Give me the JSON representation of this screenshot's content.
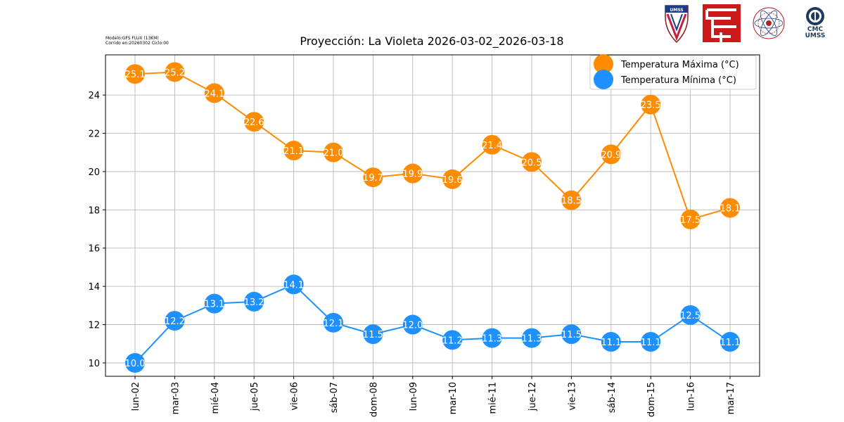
{
  "meta": {
    "model": "Modelo:GFS FLUX (13KM)",
    "run": "Corrido en:20260302 Ciclo:00"
  },
  "logos": [
    {
      "name": "umss-shield-logo",
      "text": "UMSS"
    },
    {
      "name": "fcyt-red-logo",
      "text": ""
    },
    {
      "name": "university-seal-logo",
      "text": ""
    },
    {
      "name": "cmc-umss-logo",
      "text": "CMC UMSS"
    }
  ],
  "chart_data": {
    "type": "line",
    "title": "Proyección: La Violeta 2026-03-02_2026-03-18",
    "xlabel": "",
    "ylabel": "",
    "categories": [
      "lun-02",
      "mar-03",
      "mié-04",
      "jue-05",
      "vie-06",
      "sáb-07",
      "dom-08",
      "lun-09",
      "mar-10",
      "mié-11",
      "jue-12",
      "vie-13",
      "sáb-14",
      "dom-15",
      "lun-16",
      "mar-17"
    ],
    "series": [
      {
        "name": "Temperatura Máxima  (°C)",
        "color": "#ff8c00",
        "values": [
          25.1,
          25.2,
          24.1,
          22.6,
          21.1,
          21.0,
          19.7,
          19.9,
          19.6,
          21.4,
          20.5,
          18.5,
          20.9,
          23.5,
          17.5,
          18.1
        ]
      },
      {
        "name": "Temperatura Mínima  (°C)",
        "color": "#1e90ff",
        "values": [
          10.0,
          12.2,
          13.1,
          13.2,
          14.1,
          12.1,
          11.5,
          12.0,
          11.2,
          11.3,
          11.3,
          11.5,
          11.1,
          11.1,
          12.5,
          11.1
        ]
      }
    ],
    "yticks": [
      10,
      12,
      14,
      16,
      18,
      20,
      22,
      24
    ],
    "ylim": [
      9.3,
      26.1
    ],
    "grid": true,
    "legend": "top-right"
  }
}
